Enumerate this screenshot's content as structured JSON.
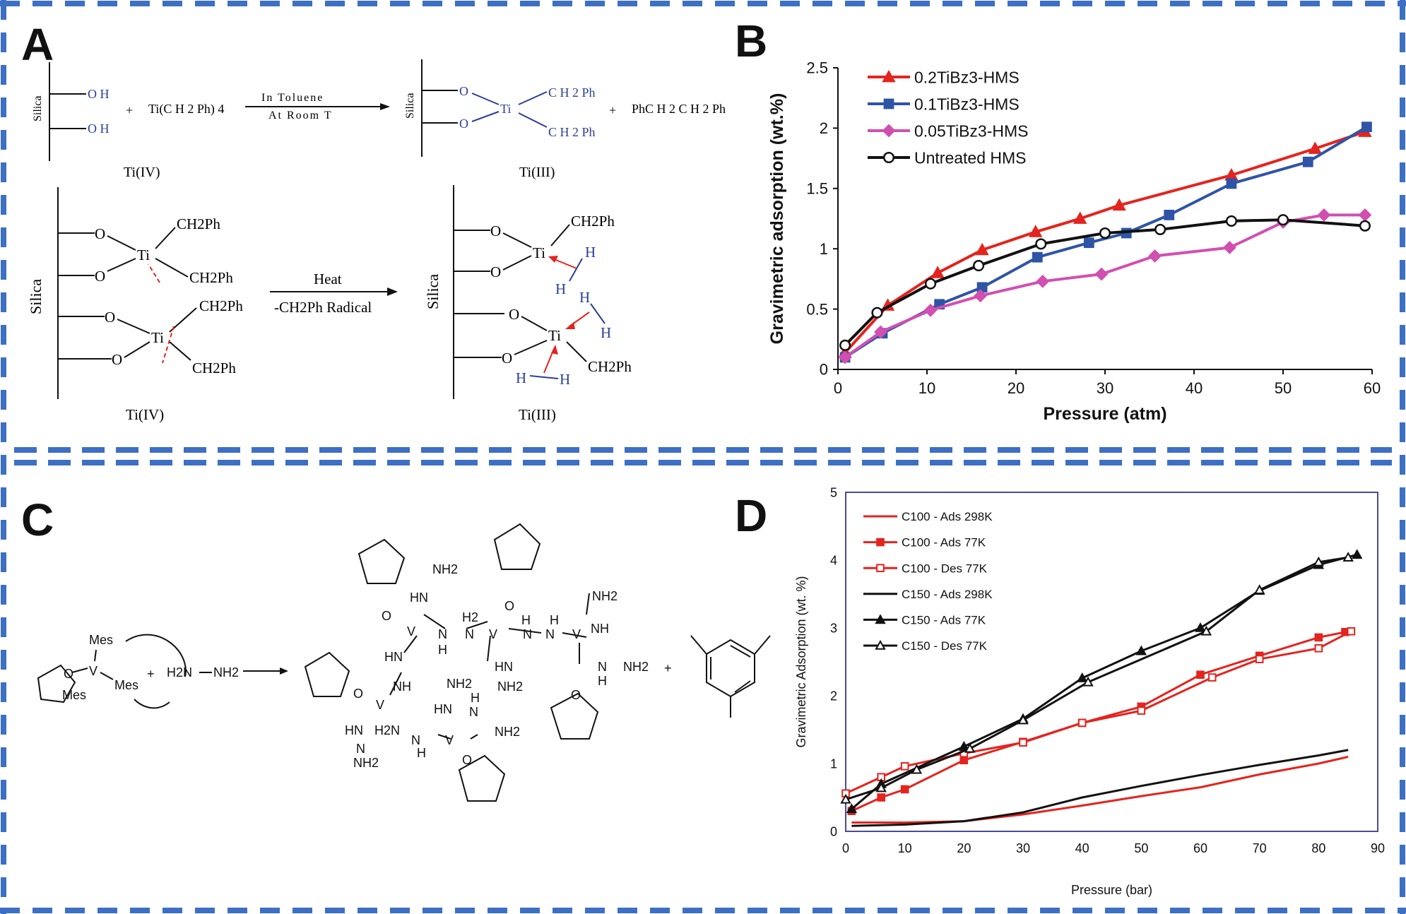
{
  "panels": {
    "A": {
      "letter": "A",
      "reaction1": {
        "silica": "Silica",
        "oh1": "O H",
        "oh2": "O H",
        "plus1": "+",
        "reagent": "Ti(C H 2 Ph) 4",
        "arrow_top": "In Toluene",
        "arrow_bottom": "At Room T",
        "o1": "O",
        "o2": "O",
        "ti": "Ti",
        "ch2ph_a": "C H 2 Ph",
        "ch2ph_b": "C H 2 Ph",
        "plus2": "+",
        "byproduct": "PhC H 2 C H 2 Ph",
        "label_left": "Ti(IV)",
        "label_right": "Ti(III)"
      },
      "reaction2": {
        "silica_left": "Silica",
        "silica_right": "Silica",
        "o": "O",
        "ti": "Ti",
        "h": "H",
        "ch2ph": "CH2Ph",
        "arrow_top": "Heat",
        "arrow_bottom": "-CH2Ph Radical",
        "label_left": "Ti(IV)",
        "label_right": "Ti(III)"
      }
    },
    "B": {
      "letter": "B"
    },
    "C": {
      "letter": "C",
      "mes": "Mes",
      "v": "V",
      "o": "O",
      "nh2": "NH2",
      "h2n": "H2N",
      "h2": "H2",
      "hn": "HN",
      "nh": "NH",
      "n": "N",
      "h": "H",
      "plus": "+",
      "dash": "—"
    },
    "D": {
      "letter": "D"
    }
  },
  "chart_data": [
    {
      "panel": "B",
      "type": "line",
      "xlabel": "Pressure (atm)",
      "ylabel": "Gravimetric adsorption (wt.%)",
      "xlim": [
        0,
        60
      ],
      "ylim": [
        0,
        2.5
      ],
      "xticks": [
        "0",
        "10",
        "20",
        "30",
        "40",
        "50",
        "60"
      ],
      "yticks": [
        "0",
        "0.5",
        "1",
        "1.5",
        "2",
        "2.5"
      ],
      "legend_position": "top-left",
      "grid": false,
      "series": [
        {
          "name": "0.2TiBz3-HMS",
          "color": "#e3241f",
          "marker": "triangle-filled",
          "x": [
            0.8,
            5.6,
            11.2,
            16.2,
            22.2,
            27.2,
            31.6,
            44.2,
            53.6,
            59.2
          ],
          "y": [
            0.14,
            0.53,
            0.8,
            0.99,
            1.14,
            1.25,
            1.36,
            1.61,
            1.83,
            1.97
          ]
        },
        {
          "name": "0.1TiBz3-HMS",
          "color": "#2f54a6",
          "marker": "square-filled",
          "x": [
            0.8,
            5.0,
            11.4,
            16.2,
            22.4,
            28.2,
            32.4,
            37.2,
            44.2,
            52.8,
            59.4
          ],
          "y": [
            0.1,
            0.3,
            0.54,
            0.68,
            0.93,
            1.05,
            1.13,
            1.28,
            1.54,
            1.72,
            2.01
          ]
        },
        {
          "name": "0.05TiBz3-HMS",
          "color": "#d14fb1",
          "marker": "diamond-filled",
          "x": [
            0.8,
            4.8,
            10.4,
            16.0,
            23.0,
            29.6,
            35.6,
            44.0,
            50.0,
            54.6,
            59.2
          ],
          "y": [
            0.1,
            0.31,
            0.49,
            0.61,
            0.73,
            0.79,
            0.94,
            1.01,
            1.22,
            1.28,
            1.28
          ]
        },
        {
          "name": "Untreated HMS",
          "color": "#111111",
          "marker": "circle-open",
          "x": [
            0.8,
            4.4,
            10.4,
            15.8,
            22.8,
            30.0,
            36.2,
            44.2,
            50.0,
            59.2
          ],
          "y": [
            0.2,
            0.47,
            0.71,
            0.86,
            1.04,
            1.13,
            1.16,
            1.23,
            1.24,
            1.19
          ]
        }
      ]
    },
    {
      "panel": "D",
      "type": "line",
      "xlabel": "Pressure (bar)",
      "ylabel": "Gravimetric Adsorption (wt. %)",
      "xlim": [
        0,
        90
      ],
      "ylim": [
        0,
        5
      ],
      "xticks": [
        "0",
        "10",
        "20",
        "30",
        "40",
        "50",
        "60",
        "70",
        "80",
        "90"
      ],
      "yticks": [
        "0",
        "1",
        "2",
        "3",
        "4",
        "5"
      ],
      "legend_position": "top-left",
      "grid": false,
      "series": [
        {
          "name": "C100 - Ads 298K",
          "color": "#e3241f",
          "marker": "none",
          "x": [
            1,
            10,
            20,
            30,
            40,
            50,
            60,
            70,
            80,
            85
          ],
          "y": [
            0.13,
            0.13,
            0.15,
            0.25,
            0.38,
            0.52,
            0.65,
            0.84,
            1.0,
            1.1
          ]
        },
        {
          "name": "C100 - Ads 77K",
          "color": "#e3241f",
          "marker": "square-filled",
          "x": [
            1,
            6,
            10,
            20,
            30,
            40,
            50,
            60,
            70,
            80,
            84.5
          ],
          "y": [
            0.3,
            0.5,
            0.62,
            1.05,
            1.32,
            1.6,
            1.84,
            2.31,
            2.59,
            2.86,
            2.94
          ]
        },
        {
          "name": "C100 - Des 77K",
          "color": "#e3241f",
          "marker": "square-open",
          "x": [
            0,
            6,
            10,
            20,
            30,
            40,
            50,
            62,
            70,
            80,
            85.5
          ],
          "y": [
            0.56,
            0.8,
            0.96,
            1.15,
            1.31,
            1.6,
            1.78,
            2.27,
            2.54,
            2.7,
            2.95
          ]
        },
        {
          "name": "C150 - Ads 298K",
          "color": "#111111",
          "marker": "none",
          "x": [
            1,
            10,
            20,
            30,
            40,
            50,
            60,
            70,
            80,
            85
          ],
          "y": [
            0.08,
            0.1,
            0.15,
            0.28,
            0.5,
            0.67,
            0.83,
            0.98,
            1.12,
            1.2
          ]
        },
        {
          "name": "C150 - Ads 77K",
          "color": "#111111",
          "marker": "triangle-filled",
          "x": [
            1,
            6,
            20,
            30,
            40,
            50,
            60,
            70,
            80,
            86.5
          ],
          "y": [
            0.33,
            0.7,
            1.25,
            1.66,
            2.26,
            2.66,
            3.0,
            3.55,
            3.93,
            4.08
          ]
        },
        {
          "name": "C150 - Des 77K",
          "color": "#111111",
          "marker": "triangle-open",
          "x": [
            0,
            6,
            12,
            21,
            30,
            41,
            61,
            70,
            80,
            85
          ],
          "y": [
            0.47,
            0.64,
            0.91,
            1.22,
            1.64,
            2.2,
            2.95,
            3.56,
            3.97,
            4.04
          ]
        }
      ]
    }
  ]
}
